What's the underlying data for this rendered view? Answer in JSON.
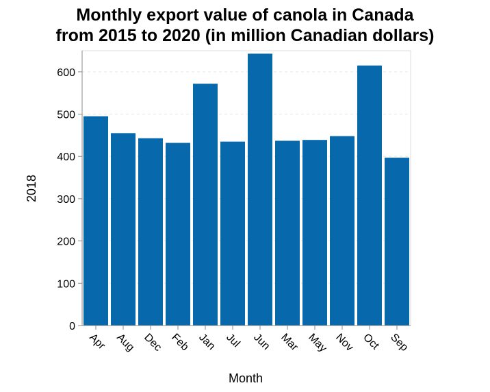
{
  "chart_data": {
    "type": "bar",
    "title_lines": [
      "Monthly export value of canola in Canada",
      "from 2015 to 2020 (in million Canadian dollars)"
    ],
    "xlabel": "Month",
    "ylabel": "2018",
    "categories": [
      "Apr",
      "Aug",
      "Dec",
      "Feb",
      "Jan",
      "Jul",
      "Jun",
      "Mar",
      "May",
      "Nov",
      "Oct",
      "Sep"
    ],
    "values": [
      495,
      455,
      443,
      432,
      572,
      435,
      643,
      437,
      439,
      448,
      615,
      397
    ],
    "ylim": [
      0,
      650
    ],
    "yticks": [
      0,
      100,
      200,
      300,
      400,
      500,
      600
    ],
    "grid": true,
    "bar_color": "#0868ac"
  }
}
